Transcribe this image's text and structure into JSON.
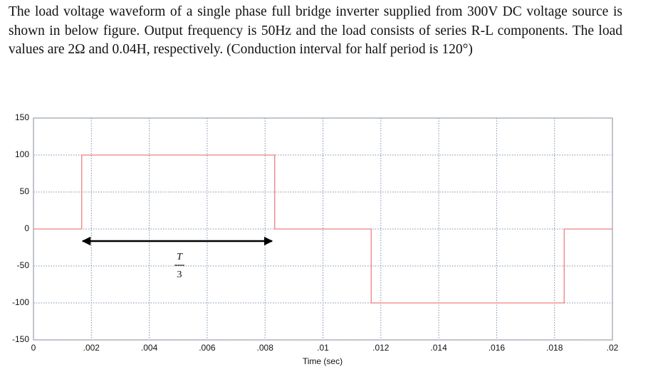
{
  "question": "The load voltage waveform of a single phase full bridge inverter supplied from 300V DC voltage source is shown in below figure. Output frequency is 50Hz and the load consists of series R-L components. The load values are 2Ω and 0.04H, respectively. (Conduction interval for half period is 120°)",
  "chart_data": {
    "type": "line",
    "x_label": "Time (sec)",
    "x": [
      0,
      0.001667,
      0.001667,
      0.008333,
      0.008333,
      0.011667,
      0.011667,
      0.018333,
      0.018333,
      0.02
    ],
    "values": [
      0,
      0,
      100,
      100,
      0,
      0,
      -100,
      -100,
      0,
      0
    ],
    "color": "#f08080",
    "xlim": [
      0,
      0.02
    ],
    "ylim": [
      -150,
      150
    ],
    "xticks": [
      0,
      {
        "value": 0.002,
        "label": ".002"
      },
      {
        "value": 0.004,
        "label": ".004"
      },
      {
        "value": 0.006,
        "label": ".006"
      },
      {
        "value": 0.008,
        "label": ".008"
      },
      {
        "value": 0.01,
        "label": ".01"
      },
      {
        "value": 0.012,
        "label": ".012"
      },
      {
        "value": 0.014,
        "label": ".014"
      },
      {
        "value": 0.016,
        "label": ".016"
      },
      {
        "value": 0.018,
        "label": ".018"
      },
      {
        "value": 0.02,
        "label": ".02"
      }
    ],
    "yticks": [
      150,
      100,
      50,
      0,
      -50,
      -100,
      -150
    ],
    "grid": true,
    "annotation": {
      "numerator": "T",
      "denominator": "3"
    }
  }
}
